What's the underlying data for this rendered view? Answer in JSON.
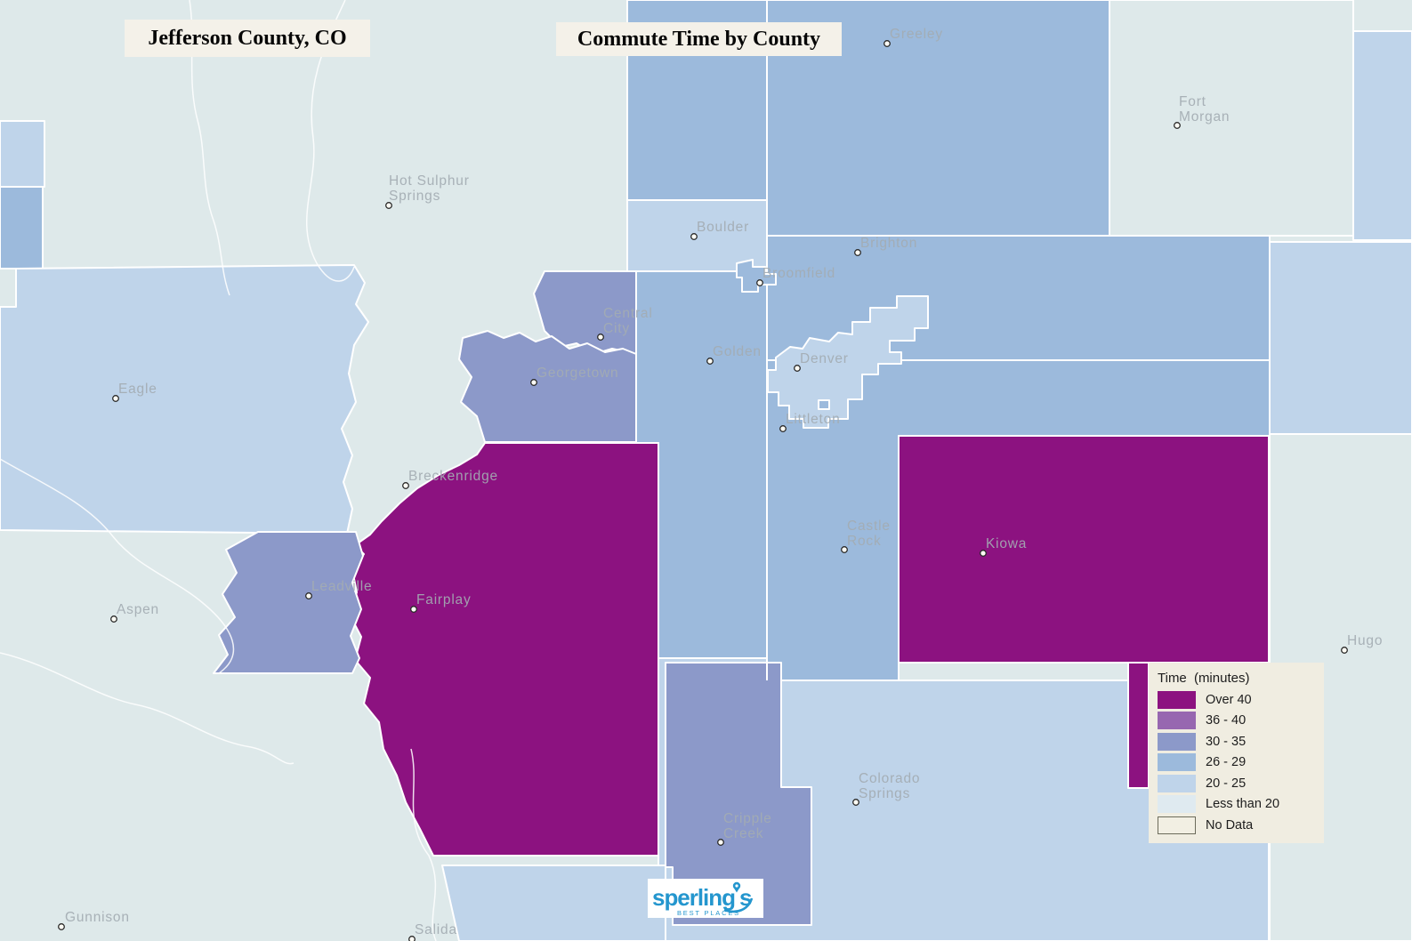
{
  "titles": {
    "left": "Jefferson County, CO",
    "right": "Commute Time by County"
  },
  "legend": {
    "title": "Time (minutes)",
    "items": [
      {
        "key": "over40",
        "label": "Over 40",
        "color": "#8C1280"
      },
      {
        "key": "b36_40",
        "label": "36 - 40",
        "color": "#9767B0"
      },
      {
        "key": "b30_35",
        "label": "30 - 35",
        "color": "#8C99C9"
      },
      {
        "key": "b26_29",
        "label": "26 - 29",
        "color": "#9CBADC"
      },
      {
        "key": "b20_25",
        "label": "20 - 25",
        "color": "#BFD4EA"
      },
      {
        "key": "less20",
        "label": "Less than 20",
        "color": "#DFEAF0"
      },
      {
        "key": "nodata",
        "label": "No Data",
        "color": "#F2EFE3",
        "border": "#6B6B5B"
      }
    ]
  },
  "map": {
    "base_color": "#DEE9EA",
    "border_color": "#FFFFFF",
    "label_color": "#A3ABB2",
    "marker_fill": "#FFFDF5",
    "marker_stroke": "#2B2B2B",
    "regions": [
      {
        "id": "north-front-range",
        "bucket": "b26_29"
      },
      {
        "id": "boulder-county",
        "bucket": "b20_25"
      },
      {
        "id": "morgan-county",
        "bucket": "less20_map"
      },
      {
        "id": "northeast-corner",
        "bucket": "b20_25"
      },
      {
        "id": "east-plains",
        "bucket": "b20_25"
      },
      {
        "id": "lincoln-county",
        "bucket": "less20_map"
      },
      {
        "id": "west-strip-upper",
        "bucket": "b20_25"
      },
      {
        "id": "west-strip-lower",
        "bucket": "b26_29"
      },
      {
        "id": "eagle-county",
        "bucket": "b20_25"
      },
      {
        "id": "el-paso-county",
        "bucket": "b20_25"
      },
      {
        "id": "fremont-county",
        "bucket": "b20_25"
      },
      {
        "id": "teller-county",
        "bucket": "b30_35"
      },
      {
        "id": "elbert-county",
        "bucket": "over40"
      },
      {
        "id": "elbert-sliver",
        "bucket": "over40"
      },
      {
        "id": "park-county",
        "bucket": "over40"
      },
      {
        "id": "gilpin-county",
        "bucket": "b30_35"
      },
      {
        "id": "clear-creek-county",
        "bucket": "b30_35"
      },
      {
        "id": "lake-county",
        "bucket": "b30_35"
      },
      {
        "id": "denver-county",
        "bucket": "b20_25"
      },
      {
        "id": "glendale-enclave",
        "bucket": "b26_29"
      },
      {
        "id": "broomfield-enclave",
        "bucket": "b26_29"
      }
    ],
    "cities": [
      {
        "id": "hot-sulphur-springs",
        "lines": [
          "Hot Sulphur",
          "Springs"
        ],
        "marker": [
          437,
          231
        ],
        "label": [
          437,
          208
        ]
      },
      {
        "id": "greeley",
        "lines": [
          "Greeley"
        ],
        "marker": [
          997,
          49
        ],
        "label": [
          1000,
          43
        ]
      },
      {
        "id": "fort-morgan",
        "lines": [
          "Fort",
          "Morgan"
        ],
        "marker": [
          1323,
          141
        ],
        "label": [
          1325,
          119
        ]
      },
      {
        "id": "boulder",
        "lines": [
          "Boulder"
        ],
        "marker": [
          780,
          266
        ],
        "label": [
          783,
          260
        ]
      },
      {
        "id": "brighton",
        "lines": [
          "Brighton"
        ],
        "marker": [
          964,
          284
        ],
        "label": [
          967,
          278
        ]
      },
      {
        "id": "broomfield",
        "lines": [
          "Broomfield"
        ],
        "marker": [
          854,
          318
        ],
        "label": [
          857,
          312
        ]
      },
      {
        "id": "central-city",
        "lines": [
          "Central",
          "City"
        ],
        "marker": [
          675,
          379
        ],
        "label": [
          678,
          357
        ]
      },
      {
        "id": "georgetown",
        "lines": [
          "Georgetown"
        ],
        "marker": [
          600,
          430
        ],
        "label": [
          603,
          424
        ]
      },
      {
        "id": "golden",
        "lines": [
          "Golden"
        ],
        "marker": [
          798,
          406
        ],
        "label": [
          801,
          400
        ]
      },
      {
        "id": "denver",
        "lines": [
          "Denver"
        ],
        "marker": [
          896,
          414
        ],
        "label": [
          899,
          408
        ]
      },
      {
        "id": "littleton",
        "lines": [
          "Littleton"
        ],
        "marker": [
          880,
          482
        ],
        "label": [
          883,
          476
        ]
      },
      {
        "id": "eagle",
        "lines": [
          "Eagle"
        ],
        "marker": [
          130,
          448
        ],
        "label": [
          133,
          442
        ]
      },
      {
        "id": "breckenridge",
        "lines": [
          "Breckenridge"
        ],
        "marker": [
          456,
          546
        ],
        "label": [
          459,
          540
        ]
      },
      {
        "id": "leadville",
        "lines": [
          "Leadville"
        ],
        "marker": [
          347,
          670
        ],
        "label": [
          350,
          664
        ]
      },
      {
        "id": "fairplay",
        "lines": [
          "Fairplay"
        ],
        "marker": [
          465,
          685
        ],
        "label": [
          468,
          679
        ]
      },
      {
        "id": "aspen",
        "lines": [
          "Aspen"
        ],
        "marker": [
          128,
          696
        ],
        "label": [
          131,
          690
        ]
      },
      {
        "id": "castle-rock",
        "lines": [
          "Castle",
          "Rock"
        ],
        "marker": [
          949,
          618
        ],
        "label": [
          952,
          596
        ]
      },
      {
        "id": "kiowa",
        "lines": [
          "Kiowa"
        ],
        "marker": [
          1105,
          622
        ],
        "label": [
          1108,
          616
        ]
      },
      {
        "id": "colorado-springs",
        "lines": [
          "Colorado",
          "Springs"
        ],
        "marker": [
          962,
          902
        ],
        "label": [
          965,
          880
        ]
      },
      {
        "id": "cripple-creek",
        "lines": [
          "Cripple",
          "Creek"
        ],
        "marker": [
          810,
          947
        ],
        "label": [
          813,
          925
        ]
      },
      {
        "id": "gunnison",
        "lines": [
          "Gunnison"
        ],
        "marker": [
          69,
          1042
        ],
        "label": [
          73,
          1036
        ]
      },
      {
        "id": "salida",
        "lines": [
          "Salida"
        ],
        "marker": [
          463,
          1056
        ],
        "label": [
          466,
          1050
        ]
      },
      {
        "id": "hugo",
        "lines": [
          "Hugo"
        ],
        "marker": [
          1511,
          731
        ],
        "label": [
          1514,
          725
        ]
      }
    ]
  },
  "logo": {
    "wordmark_left": "sperling",
    "wordmark_right": "s",
    "tagline": "BEST PLACES",
    "color": "#2496CE"
  }
}
